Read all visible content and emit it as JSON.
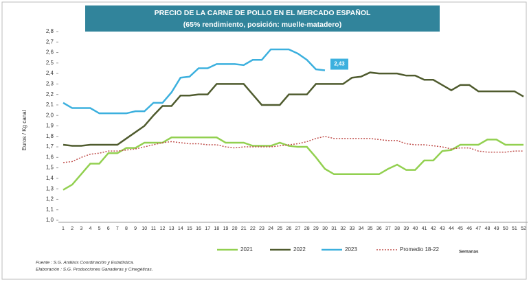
{
  "chart_data": {
    "type": "line",
    "title": "PRECIO DE LA CARNE DE POLLO EN EL MERCADO ESPAÑOL",
    "subtitle": "(65% rendimiento, posición: muelle-matadero)",
    "y_label": "Euros / Kg canal",
    "x_label": "Semanas",
    "annotation": "2,43",
    "notes": [
      "Fuente : S.G. Análisis Coordinación y Estadística.",
      "Elaboración : S.G. Producciones Ganaderas y Cinegéticas."
    ],
    "categories": [
      "1",
      "2",
      "3",
      "4",
      "5",
      "6",
      "7",
      "8",
      "9",
      "10",
      "11",
      "12",
      "13",
      "14",
      "15",
      "16",
      "17",
      "18",
      "19",
      "20",
      "21",
      "22",
      "23",
      "24",
      "25",
      "26",
      "27",
      "28",
      "29",
      "30",
      "31",
      "32",
      "33",
      "34",
      "35",
      "36",
      "37",
      "38",
      "39",
      "40",
      "41",
      "42",
      "43",
      "44",
      "45",
      "46",
      "47",
      "48",
      "49",
      "50",
      "51",
      "52"
    ],
    "ylim": [
      1.0,
      2.8
    ],
    "yticks": [
      {
        "value": 1.0,
        "label": "1,0"
      },
      {
        "value": 1.1,
        "label": "1,1"
      },
      {
        "value": 1.2,
        "label": "1,2"
      },
      {
        "value": 1.3,
        "label": "1,3"
      },
      {
        "value": 1.4,
        "label": "1,4"
      },
      {
        "value": 1.5,
        "label": "1,5"
      },
      {
        "value": 1.6,
        "label": "1,6"
      },
      {
        "value": 1.7,
        "label": "1,7"
      },
      {
        "value": 1.8,
        "label": "1,8"
      },
      {
        "value": 1.9,
        "label": "1,9"
      },
      {
        "value": 2.0,
        "label": "2,0"
      },
      {
        "value": 2.1,
        "label": "2,1"
      },
      {
        "value": 2.2,
        "label": "2,2"
      },
      {
        "value": 2.3,
        "label": "2,3"
      },
      {
        "value": 2.4,
        "label": "2,4"
      },
      {
        "value": 2.5,
        "label": "2,5"
      },
      {
        "value": 2.6,
        "label": "2,6"
      },
      {
        "value": 2.7,
        "label": "2,7"
      },
      {
        "value": 2.8,
        "label": "2,8"
      }
    ],
    "series": [
      {
        "name": "2021",
        "color": "#92d050",
        "values": [
          1.29,
          1.34,
          1.44,
          1.54,
          1.54,
          1.64,
          1.64,
          1.69,
          1.69,
          1.74,
          1.74,
          1.74,
          1.79,
          1.79,
          1.79,
          1.79,
          1.79,
          1.79,
          1.74,
          1.74,
          1.74,
          1.71,
          1.71,
          1.71,
          1.74,
          1.71,
          1.7,
          1.7,
          1.6,
          1.49,
          1.44,
          1.44,
          1.44,
          1.44,
          1.44,
          1.44,
          1.49,
          1.53,
          1.48,
          1.48,
          1.57,
          1.57,
          1.66,
          1.67,
          1.72,
          1.72,
          1.72,
          1.77,
          1.77,
          1.72,
          1.72,
          1.72
        ]
      },
      {
        "name": "2022",
        "color": "#4f5b2e",
        "values": [
          1.72,
          1.71,
          1.71,
          1.72,
          1.72,
          1.72,
          1.72,
          1.78,
          1.84,
          1.9,
          2.0,
          2.09,
          2.09,
          2.19,
          2.19,
          2.2,
          2.2,
          2.3,
          2.3,
          2.3,
          2.3,
          2.2,
          2.1,
          2.1,
          2.1,
          2.2,
          2.2,
          2.2,
          2.3,
          2.3,
          2.3,
          2.3,
          2.36,
          2.37,
          2.41,
          2.4,
          2.4,
          2.4,
          2.38,
          2.38,
          2.34,
          2.34,
          2.29,
          2.24,
          2.29,
          2.29,
          2.23,
          2.23,
          2.23,
          2.23,
          2.23,
          2.18
        ]
      },
      {
        "name": "2023",
        "color": "#3cb0de",
        "values": [
          2.12,
          2.07,
          2.07,
          2.07,
          2.02,
          2.02,
          2.02,
          2.02,
          2.04,
          2.04,
          2.12,
          2.12,
          2.22,
          2.36,
          2.37,
          2.45,
          2.45,
          2.49,
          2.49,
          2.49,
          2.48,
          2.53,
          2.53,
          2.63,
          2.63,
          2.63,
          2.59,
          2.53,
          2.44,
          2.43,
          null,
          null,
          null,
          null,
          null,
          null,
          null,
          null,
          null,
          null,
          null,
          null,
          null,
          null,
          null,
          null,
          null,
          null,
          null,
          null,
          null,
          null
        ]
      },
      {
        "name": "Promedio 18-22",
        "color": "#c0504d",
        "dashed": true,
        "values": [
          1.55,
          1.56,
          1.6,
          1.63,
          1.64,
          1.66,
          1.66,
          1.67,
          1.68,
          1.7,
          1.72,
          1.74,
          1.75,
          1.74,
          1.73,
          1.73,
          1.72,
          1.72,
          1.7,
          1.69,
          1.7,
          1.7,
          1.7,
          1.7,
          1.71,
          1.72,
          1.73,
          1.75,
          1.78,
          1.8,
          1.78,
          1.78,
          1.78,
          1.78,
          1.78,
          1.77,
          1.76,
          1.76,
          1.73,
          1.72,
          1.72,
          1.71,
          1.7,
          1.68,
          1.69,
          1.69,
          1.66,
          1.65,
          1.65,
          1.65,
          1.66,
          1.66
        ]
      }
    ]
  }
}
